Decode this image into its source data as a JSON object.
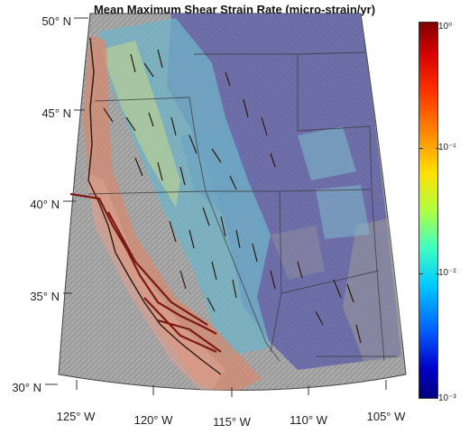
{
  "title": "Mean Maximum Shear Strain Rate (micro-strain/yr)",
  "latitude_labels": [
    "50° N",
    "45° N",
    "40° N",
    "35° N",
    "30° N"
  ],
  "longitude_labels": [
    "125° W",
    "120° W",
    "115° W",
    "110° W",
    "105° W"
  ],
  "colorbar": {
    "scale": "log",
    "tick_labels": [
      "10⁰",
      "10⁻¹",
      "10⁻²",
      "10⁻³"
    ],
    "colormap_colors": [
      "#7f0000",
      "#ff3000",
      "#ffe000",
      "#40ffc0",
      "#00c8ff",
      "#0000c8",
      "#00007f"
    ]
  },
  "colors": {
    "background_relief": "#9a9a9a",
    "low_strain": "#5e5fa8",
    "medium_strain": "#6fb4c8",
    "high_strain": "#d48a70",
    "fault_lines": "#3a1a10",
    "fault_lines_high": "#8a1a10"
  }
}
